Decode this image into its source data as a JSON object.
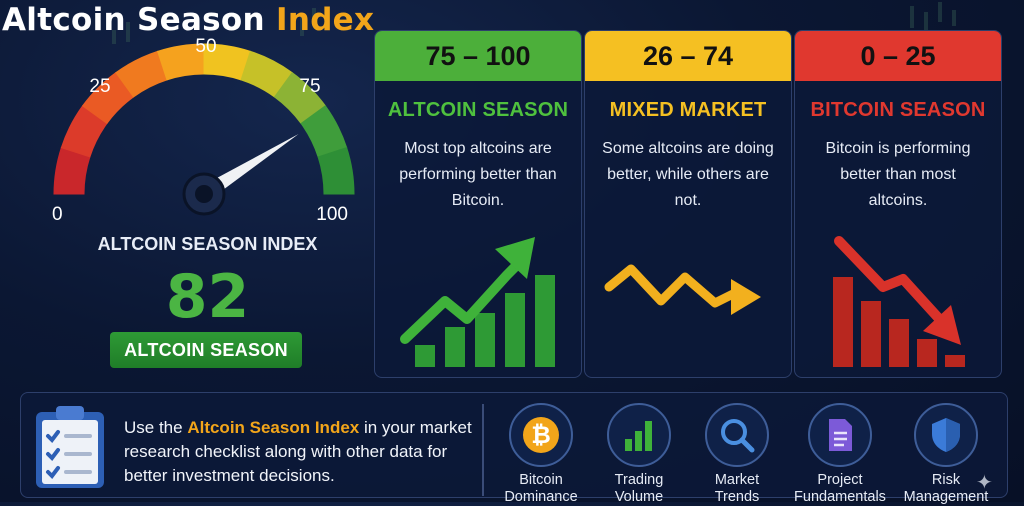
{
  "title": {
    "main": "Altcoin Season",
    "highlight": "Index"
  },
  "gauge": {
    "ticks": [
      "0",
      "25",
      "50",
      "75",
      "100"
    ],
    "label": "ALTCOIN SEASON INDEX",
    "value": 82,
    "value_text": "82",
    "status": "ALTCOIN SEASON"
  },
  "cards": [
    {
      "range": "75 – 100",
      "name": "ALTCOIN SEASON",
      "desc": "Most top altcoins are performing better than Bitcoin.",
      "color": "#4caf3a",
      "name_color": "#4fc13e",
      "trend": "up"
    },
    {
      "range": "26 – 74",
      "name": "MIXED MARKET",
      "desc": "Some altcoins are doing better, while others are not.",
      "color": "#f5c022",
      "name_color": "#f5c022",
      "trend": "mixed"
    },
    {
      "range": "0 – 25",
      "name": "BITCOIN SEASON",
      "desc": "Bitcoin is performing better than most altcoins.",
      "color": "#e0382f",
      "name_color": "#e0382f",
      "trend": "down"
    }
  ],
  "bottom": {
    "text_before": "Use the ",
    "text_highlight": "Altcoin Season Index",
    "text_after": " in your market research checklist along with other data for better investment decisions."
  },
  "tools": [
    {
      "line1": "Bitcoin",
      "line2": "Dominance",
      "icon": "bitcoin-icon"
    },
    {
      "line1": "Trading",
      "line2": "Volume",
      "icon": "bar-chart-icon"
    },
    {
      "line1": "Market",
      "line2": "Trends",
      "icon": "magnifier-icon"
    },
    {
      "line1": "Project",
      "line2": "Fundamentals",
      "icon": "document-icon"
    },
    {
      "line1": "Risk",
      "line2": "Management",
      "icon": "shield-icon"
    }
  ]
}
